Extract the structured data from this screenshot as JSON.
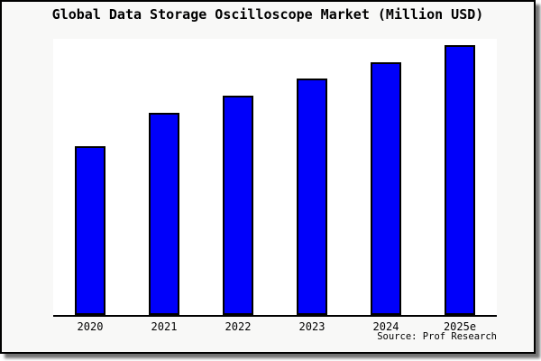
{
  "title": "Global Data Storage Oscilloscope Market (Million USD)",
  "source_note": "Source: Prof Research",
  "colors": {
    "bar_fill": "#0000FA",
    "bar_border": "#000000",
    "card_background": "#F8F8F7",
    "plot_background": "#FFFFFF",
    "axis_line": "#000000",
    "text": "#000000"
  },
  "chart_data": {
    "type": "bar",
    "title": "Global Data Storage Oscilloscope Market (Million USD)",
    "categories": [
      "2020",
      "2021",
      "2022",
      "2023",
      "2024",
      "2025e"
    ],
    "values": [
      62.5,
      74.9,
      81.3,
      87.6,
      93.6,
      100
    ],
    "values_scale": "relative bar height as % of tallest bar (no y-axis tick labels shown in chart)",
    "xlabel": "",
    "ylabel": "",
    "ylim": [
      0,
      100
    ],
    "grid": false,
    "legend": false,
    "y_axis_visible": false,
    "source": "Source: Prof Research"
  }
}
